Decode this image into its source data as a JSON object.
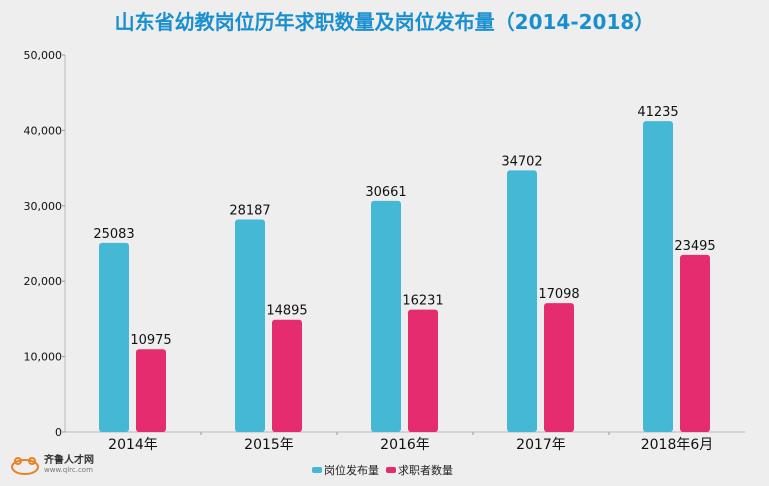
{
  "chart_data": {
    "type": "bar",
    "title": "山东省幼教岗位历年求职数量及岗位发布量（2014-2018）",
    "categories": [
      "2014年",
      "2015年",
      "2016年",
      "2017年",
      "2018年6月"
    ],
    "series": [
      {
        "name": "岗位发布量",
        "color": "#45b8d6",
        "values": [
          25083,
          28187,
          30661,
          34702,
          41235
        ]
      },
      {
        "name": "求职者数量",
        "color": "#e52c6e",
        "values": [
          10975,
          14895,
          16231,
          17098,
          23495
        ]
      }
    ],
    "ylim": [
      0,
      50000
    ],
    "yticks": [
      0,
      10000,
      20000,
      30000,
      40000,
      50000
    ],
    "ytick_labels": [
      "0",
      "10,000",
      "20,000",
      "30,000",
      "40,000",
      "50,000"
    ],
    "grid": false,
    "legend": "bottom"
  },
  "watermark": {
    "text": "齐鲁人才网",
    "url": "www.qlrc.com"
  }
}
